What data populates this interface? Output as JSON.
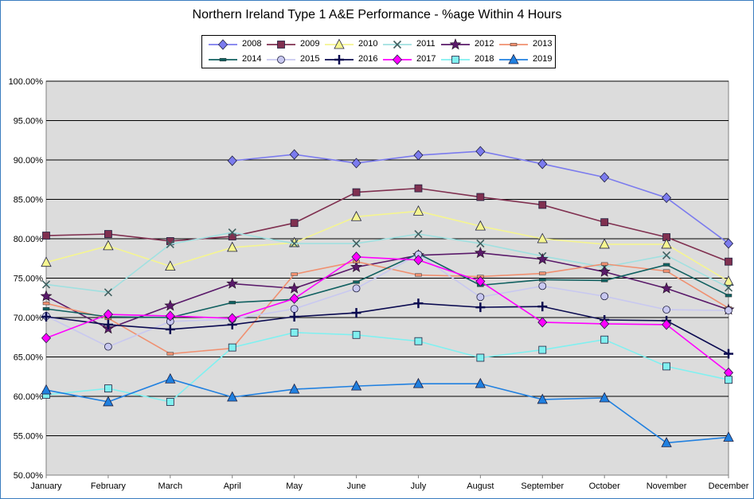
{
  "chart_data": {
    "type": "line",
    "title": "Northern Ireland Type 1 A&E Performance - %age Within 4 Hours",
    "xlabel": "",
    "ylabel": "",
    "categories": [
      "January",
      "February",
      "March",
      "April",
      "May",
      "June",
      "July",
      "August",
      "September",
      "October",
      "November",
      "December"
    ],
    "ylim": [
      50,
      100
    ],
    "yticks": [
      "50.00%",
      "55.00%",
      "60.00%",
      "65.00%",
      "70.00%",
      "75.00%",
      "80.00%",
      "85.00%",
      "90.00%",
      "95.00%",
      "100.00%"
    ],
    "legend_position": "top",
    "series": [
      {
        "name": "2008",
        "color": "#7b7bee",
        "marker": "diamond",
        "values": [
          null,
          null,
          null,
          89.9,
          90.7,
          89.6,
          90.6,
          91.1,
          89.5,
          87.8,
          85.2,
          79.4
        ]
      },
      {
        "name": "2009",
        "color": "#803050",
        "marker": "square",
        "values": [
          80.4,
          80.6,
          79.7,
          80.3,
          82.0,
          85.9,
          86.4,
          85.3,
          84.3,
          82.1,
          80.2,
          77.1
        ]
      },
      {
        "name": "2010",
        "color": "#f5f590",
        "marker": "triangle",
        "values": [
          77.0,
          79.1,
          76.5,
          78.9,
          79.5,
          82.8,
          83.5,
          81.6,
          80.0,
          79.3,
          79.3,
          74.6
        ]
      },
      {
        "name": "2011",
        "color": "#a0e0e0",
        "marker": "x",
        "values": [
          74.2,
          73.2,
          79.3,
          80.8,
          79.4,
          79.4,
          80.6,
          79.4,
          77.8,
          76.4,
          77.9,
          73.8
        ]
      },
      {
        "name": "2012",
        "color": "#5a1a6a",
        "marker": "star",
        "values": [
          72.7,
          68.6,
          71.5,
          74.3,
          73.7,
          76.4,
          77.9,
          78.2,
          77.4,
          75.8,
          73.7,
          71.0
        ]
      },
      {
        "name": "2013",
        "color": "#f09070",
        "marker": "dash",
        "values": [
          71.8,
          69.9,
          65.4,
          66.1,
          75.5,
          77.1,
          75.4,
          75.2,
          75.6,
          76.8,
          75.9,
          71.2
        ]
      },
      {
        "name": "2014",
        "color": "#106060",
        "marker": "dash",
        "values": [
          71.1,
          70.1,
          70.0,
          71.9,
          72.3,
          74.5,
          78.1,
          74.1,
          74.8,
          74.7,
          76.7,
          72.8
        ]
      },
      {
        "name": "2015",
        "color": "#c8c8f0",
        "marker": "circle",
        "values": [
          70.2,
          66.3,
          69.5,
          69.8,
          71.1,
          73.7,
          78.0,
          72.6,
          74.0,
          72.7,
          71.0,
          70.9
        ]
      },
      {
        "name": "2016",
        "color": "#0a0a50",
        "marker": "plus",
        "values": [
          70.1,
          69.1,
          68.5,
          69.1,
          70.1,
          70.6,
          71.8,
          71.3,
          71.4,
          69.7,
          69.6,
          65.4
        ]
      },
      {
        "name": "2017",
        "color": "#ff00ff",
        "marker": "diamond",
        "values": [
          67.4,
          70.4,
          70.2,
          69.9,
          72.4,
          77.7,
          77.3,
          74.6,
          69.4,
          69.2,
          69.1,
          63.0
        ]
      },
      {
        "name": "2018",
        "color": "#80f0f0",
        "marker": "square",
        "values": [
          60.2,
          61.0,
          59.3,
          66.2,
          68.1,
          67.8,
          67.0,
          64.9,
          65.9,
          67.2,
          63.8,
          62.1
        ]
      },
      {
        "name": "2019",
        "color": "#2080e0",
        "marker": "triangle",
        "values": [
          60.8,
          59.3,
          62.2,
          59.9,
          60.9,
          61.3,
          61.6,
          61.6,
          59.6,
          59.8,
          54.1,
          54.8
        ]
      }
    ]
  }
}
